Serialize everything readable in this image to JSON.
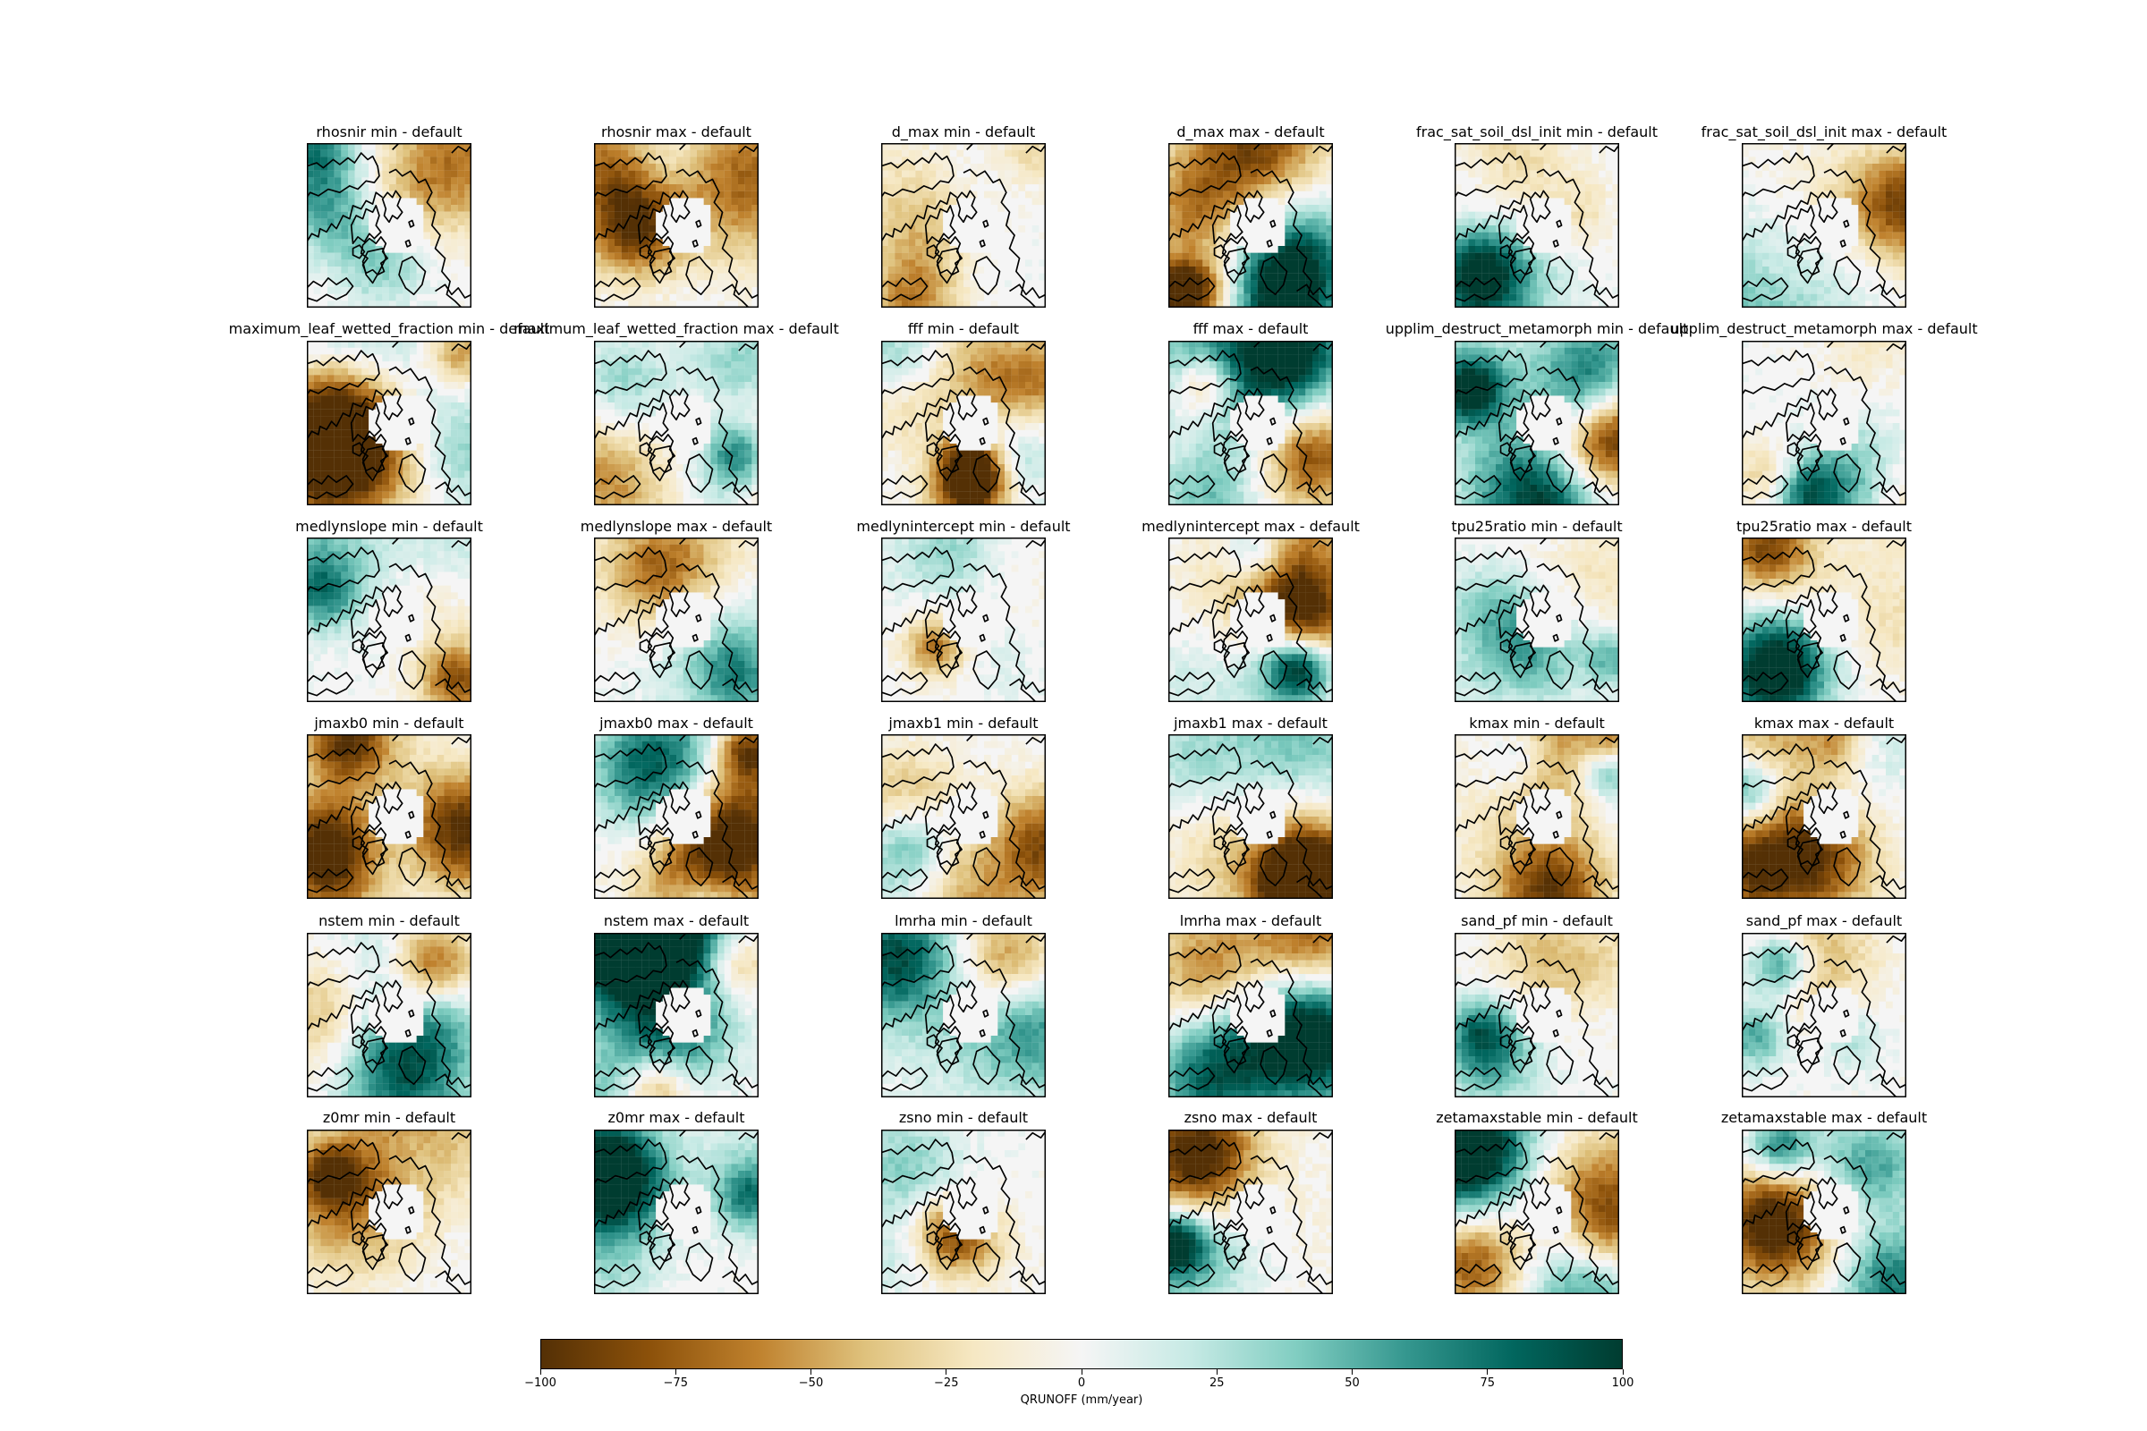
{
  "chart_data": {
    "type": "heatmap",
    "layout": {
      "rows": 6,
      "cols": 6
    },
    "panels": [
      {
        "title": "rhosnir min - default"
      },
      {
        "title": "rhosnir max - default"
      },
      {
        "title": "d_max min - default"
      },
      {
        "title": "d_max max - default"
      },
      {
        "title": "frac_sat_soil_dsl_init min - default"
      },
      {
        "title": "frac_sat_soil_dsl_init max - default"
      },
      {
        "title": "maximum_leaf_wetted_fraction min - default"
      },
      {
        "title": "maximum_leaf_wetted_fraction max - default"
      },
      {
        "title": "fff min - default"
      },
      {
        "title": "fff max - default"
      },
      {
        "title": "upplim_destruct_metamorph min - default"
      },
      {
        "title": "upplim_destruct_metamorph max - default"
      },
      {
        "title": "medlynslope min - default"
      },
      {
        "title": "medlynslope max - default"
      },
      {
        "title": "medlynintercept min - default"
      },
      {
        "title": "medlynintercept max - default"
      },
      {
        "title": "tpu25ratio min - default"
      },
      {
        "title": "tpu25ratio max - default"
      },
      {
        "title": "jmaxb0 min - default"
      },
      {
        "title": "jmaxb0 max - default"
      },
      {
        "title": "jmaxb1 min - default"
      },
      {
        "title": "jmaxb1 max - default"
      },
      {
        "title": "kmax min - default"
      },
      {
        "title": "kmax max - default"
      },
      {
        "title": "nstem min - default"
      },
      {
        "title": "nstem max - default"
      },
      {
        "title": "lmrha min - default"
      },
      {
        "title": "lmrha max - default"
      },
      {
        "title": "sand_pf min - default"
      },
      {
        "title": "sand_pf max - default"
      },
      {
        "title": "z0mr min - default"
      },
      {
        "title": "z0mr max - default"
      },
      {
        "title": "zsno min - default"
      },
      {
        "title": "zsno max - default"
      },
      {
        "title": "zetamaxstable min - default"
      },
      {
        "title": "zetamaxstable max - default"
      }
    ],
    "colorbar": {
      "label": "QRUNOFF (mm/year)",
      "colormap": "BrBG",
      "vmin": -100,
      "vmax": 100,
      "ticks": [
        -100,
        -75,
        -50,
        -25,
        0,
        25,
        50,
        75,
        100
      ],
      "tick_labels": [
        "−100",
        "−75",
        "−50",
        "−25",
        "0",
        "25",
        "50",
        "75",
        "100"
      ]
    },
    "colors": {
      "negative_extreme": "#543005",
      "neutral": "#f5f5f5",
      "positive_extreme": "#003c30",
      "coastline": "#000000"
    }
  }
}
